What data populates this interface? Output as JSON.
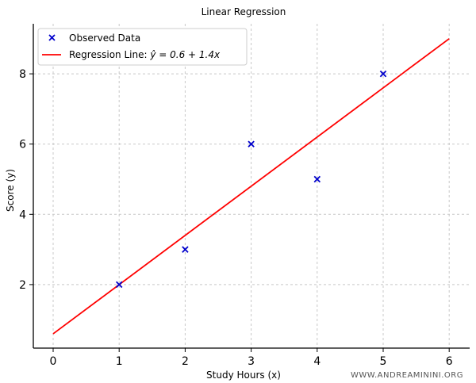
{
  "chart_data": {
    "type": "scatter",
    "title": "Linear Regression",
    "xlabel": "Study Hours (x)",
    "ylabel": "Score (y)",
    "xlim": [
      -0.3,
      6.3
    ],
    "ylim": [
      0.2,
      9.5
    ],
    "xticks": [
      0,
      1,
      2,
      3,
      4,
      5,
      6
    ],
    "yticks": [
      2,
      4,
      6,
      8
    ],
    "grid": true,
    "legend_position": "top-left",
    "series": [
      {
        "name": "Observed Data",
        "kind": "scatter",
        "marker": "x",
        "color": "#0000cc",
        "x": [
          1,
          2,
          3,
          4,
          5
        ],
        "y": [
          2,
          3,
          6,
          5,
          8
        ]
      },
      {
        "name": "Regression Line: ŷ = 0.6 + 1.4x",
        "kind": "line",
        "color": "#ff0000",
        "intercept": 0.6,
        "slope": 1.4,
        "x": [
          0,
          6
        ],
        "y": [
          0.6,
          9.0
        ]
      }
    ],
    "legend": {
      "scatter_label": "Observed Data",
      "line_label_prefix": "Regression Line: ",
      "line_label_equation": "ŷ = 0.6 + 1.4x"
    },
    "watermark": "WWW.ANDREAMININI.ORG"
  }
}
